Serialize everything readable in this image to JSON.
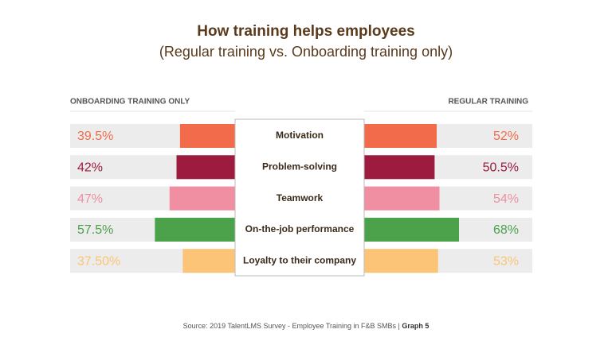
{
  "chart_data": {
    "type": "butterfly",
    "title": "How training helps employees",
    "subtitle": "(Regular training vs. Onboarding training only)",
    "categories": [
      "Motivation",
      "Problem-solving",
      "Teamwork",
      "On-the-job performance",
      "Loyalty to their company"
    ],
    "colors": [
      "#f26c4b",
      "#9c1b3f",
      "#ef8fa1",
      "#4ca24b",
      "#fcc477"
    ],
    "series": [
      {
        "name": "ONBOARDING TRAINING ONLY",
        "values": [
          39.5,
          42,
          47,
          57.5,
          37.5
        ],
        "value_labels": [
          "39.5%",
          "42%",
          "47%",
          "57.5%",
          "37.50%"
        ]
      },
      {
        "name": "REGULAR TRAINING",
        "values": [
          52,
          50.5,
          54,
          68,
          53
        ],
        "value_labels": [
          "52%",
          "50.5%",
          "54%",
          "68%",
          "53%"
        ]
      }
    ]
  },
  "footer": {
    "source": "Source: 2019 TalentLMS Survey - Employee Training in F&B SMBs |",
    "graph_label": "Graph 5"
  }
}
